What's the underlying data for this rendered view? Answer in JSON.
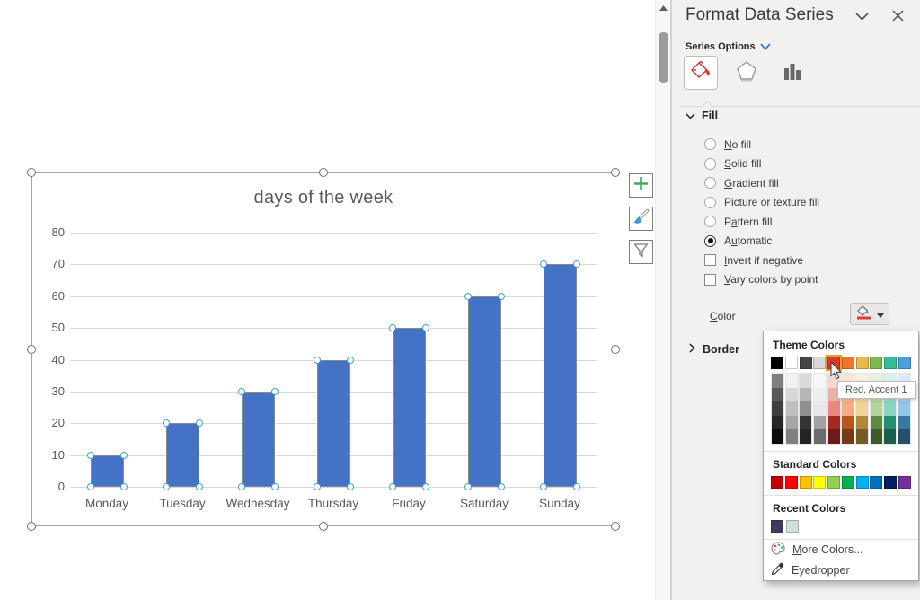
{
  "panel": {
    "title": "Format Data Series",
    "series_options_label": "Series Options",
    "tabs": [
      {
        "name": "fill-and-line",
        "icon": "paint-bucket-icon",
        "selected": true
      },
      {
        "name": "effects",
        "icon": "pentagon-icon",
        "selected": false
      },
      {
        "name": "series-options",
        "icon": "column-chart-icon",
        "selected": false
      }
    ],
    "fill": {
      "header": "Fill",
      "options": [
        {
          "label": "No fill",
          "u_index": 0,
          "control": "radio",
          "checked": false
        },
        {
          "label": "Solid fill",
          "u_index": 0,
          "control": "radio",
          "checked": false
        },
        {
          "label": "Gradient fill",
          "u_index": 0,
          "control": "radio",
          "checked": false
        },
        {
          "label": "Picture or texture fill",
          "u_index": 0,
          "control": "radio",
          "checked": false
        },
        {
          "label": "Pattern fill",
          "u_index": 1,
          "control": "radio",
          "checked": false
        },
        {
          "label": "Automatic",
          "u_index": 1,
          "control": "radio",
          "checked": true
        },
        {
          "label": "Invert if negative",
          "u_index": 0,
          "control": "checkbox",
          "checked": false
        },
        {
          "label": "Vary colors by point",
          "u_index": 0,
          "control": "checkbox",
          "checked": false
        }
      ]
    },
    "color_row": {
      "label": "Color",
      "u_index": 0,
      "button_icon": "fill-color-bucket-icon",
      "accent_bar_color": "#e03c31"
    },
    "border": {
      "label": "Border",
      "collapsed": true
    }
  },
  "color_popup": {
    "theme_header": "Theme Colors",
    "theme_colors": [
      "#000000",
      "#FFFFFF",
      "#464646",
      "#D8D8D8",
      "#D8392B",
      "#F2732A",
      "#E7B84B",
      "#7DB954",
      "#35BD9A",
      "#4D9FDC"
    ],
    "selected_theme_index": 4,
    "variants": [
      [
        "#7F7F7F",
        "#595959",
        "#3F3F3F",
        "#262626",
        "#0C0C0C"
      ],
      [
        "#F2F2F2",
        "#D8D8D8",
        "#BFBFBF",
        "#A5A5A5",
        "#7F7F7F"
      ],
      [
        "#DADADA",
        "#B5B5B5",
        "#909090",
        "#343434",
        "#232323"
      ],
      [
        "#F7F7F7",
        "#EFEFEF",
        "#E8E8E8",
        "#A2A2A2",
        "#6C6C6C"
      ],
      [
        "#F7D7D4",
        "#EFB0AA",
        "#E88880",
        "#A22B20",
        "#6C1C15"
      ],
      [
        "#FCE3D4",
        "#FAC7AA",
        "#F7AB7F",
        "#B5561F",
        "#793915"
      ],
      [
        "#FAF1DB",
        "#F5E3B7",
        "#F0D493",
        "#AD8A38",
        "#735C25"
      ],
      [
        "#E5F1DD",
        "#CBE3BA",
        "#B1D598",
        "#5D8A3F",
        "#3E5C2A"
      ],
      [
        "#D7F2EB",
        "#AEE5D6",
        "#86D7C2",
        "#278D73",
        "#1A5E4D"
      ],
      [
        "#DBECF8",
        "#B8D9F1",
        "#94C5EA",
        "#3977A5",
        "#264F6E"
      ]
    ],
    "standard_header": "Standard Colors",
    "standard_colors": [
      "#C00000",
      "#FF0000",
      "#FFC000",
      "#FFFF00",
      "#92D050",
      "#00B050",
      "#00B0F0",
      "#0070C0",
      "#002060",
      "#7030A0"
    ],
    "recent_header": "Recent Colors",
    "recent_colors": [
      "#3F3A60",
      "#CCE2D4"
    ],
    "more_colors_label": "More Colors...",
    "more_colors_u_index": 0,
    "more_colors_icon": "palette-icon",
    "eyedropper_label": "Eyedropper",
    "eyedropper_icon": "eyedropper-icon",
    "tooltip": "Red, Accent 1"
  },
  "chart_tools": [
    {
      "name": "chart-elements",
      "icon": "plus-icon"
    },
    {
      "name": "chart-styles",
      "icon": "brush-icon"
    },
    {
      "name": "chart-filters",
      "icon": "funnel-icon"
    }
  ],
  "chart_data": {
    "type": "bar",
    "title": "days of the week",
    "categories": [
      "Monday",
      "Tuesday",
      "Wednesday",
      "Thursday",
      "Friday",
      "Saturday",
      "Sunday"
    ],
    "values": [
      10,
      20,
      30,
      40,
      50,
      60,
      70
    ],
    "xlabel": "",
    "ylabel": "",
    "ylim": [
      0,
      80
    ],
    "ytick_step": 10,
    "bar_color": "#4472C4",
    "grid": true,
    "legend": false,
    "selection_handles": true
  }
}
